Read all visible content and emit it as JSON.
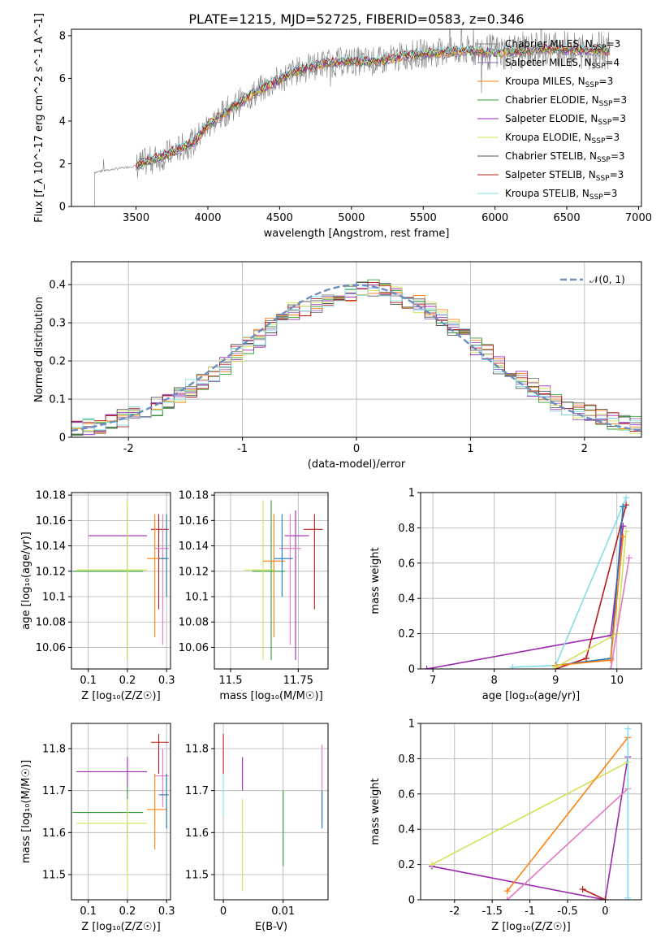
{
  "chart_data": [
    {
      "id": "spectrum",
      "type": "line",
      "title": "PLATE=1215, MJD=52725, FIBERID=0583, z=0.346",
      "xlabel": "wavelength [Angstrom, rest frame]",
      "ylabel": "Flux [f_λ 10^-17 erg cm^-2 s^-1 A^-1]",
      "xlim": [
        3050,
        7020
      ],
      "ylim": [
        0,
        8.3
      ],
      "xticks": [
        3500,
        4000,
        4500,
        5000,
        5500,
        6000,
        6500,
        7000
      ],
      "yticks": [
        0,
        2,
        4,
        6,
        8
      ],
      "grid": false,
      "legend_position": "top-right",
      "series": [
        {
          "name": "Chabrier MILES, N_SSP=3",
          "color": "#7f7f7f"
        },
        {
          "name": "Salpeter MILES, N_SSP=4",
          "color": "#9467bd"
        },
        {
          "name": "Kroupa MILES, N_SSP=3",
          "color": "#ff7f0e"
        },
        {
          "name": "Chabrier ELODIE, N_SSP=3",
          "color": "#2ca02c"
        },
        {
          "name": "Salpeter ELODIE, N_SSP=3",
          "color": "#9c27b0"
        },
        {
          "name": "Kroupa ELODIE, N_SSP=3",
          "color": "#d4e157"
        },
        {
          "name": "Chabrier STELIB, N_SSP=3",
          "color": "#555555"
        },
        {
          "name": "Salpeter STELIB, N_SSP=3",
          "color": "#b71c1c"
        },
        {
          "name": "Kroupa STELIB, N_SSP=3",
          "color": "#80deea"
        }
      ],
      "continuum": {
        "x": [
          3210,
          3300,
          3500,
          3700,
          3900,
          4000,
          4200,
          4400,
          4600,
          4800,
          5000,
          5200,
          5400,
          5600,
          5800,
          6000,
          6200,
          6400,
          6600,
          6800
        ],
        "y": [
          1.6,
          1.7,
          1.9,
          2.4,
          3.0,
          3.8,
          4.8,
          5.6,
          6.3,
          6.7,
          6.8,
          6.8,
          7.1,
          7.2,
          7.3,
          7.2,
          7.3,
          7.4,
          7.3,
          7.3
        ]
      }
    },
    {
      "id": "residuals",
      "type": "line",
      "xlabel": "(data-model)/error",
      "ylabel": "Normed distribution",
      "xlim": [
        -2.5,
        2.5
      ],
      "ylim": [
        0,
        0.46
      ],
      "xticks": [
        -2,
        -1,
        0,
        1,
        2
      ],
      "yticks": [
        0.0,
        0.1,
        0.2,
        0.3,
        0.4
      ],
      "grid": true,
      "legend": [
        {
          "name": "𝒩(0, 1)",
          "color": "#6c8ebf"
        }
      ],
      "hist_bins": [
        -2.5,
        -2.4,
        -2.3,
        -2.2,
        -2.1,
        -2.0,
        -1.9,
        -1.8,
        -1.7,
        -1.6,
        -1.5,
        -1.4,
        -1.3,
        -1.2,
        -1.1,
        -1.0,
        -0.9,
        -0.8,
        -0.7,
        -0.6,
        -0.5,
        -0.4,
        -0.3,
        -0.2,
        -0.1,
        0.0,
        0.1,
        0.2,
        0.3,
        0.4,
        0.5,
        0.6,
        0.7,
        0.8,
        0.9,
        1.0,
        1.1,
        1.2,
        1.3,
        1.4,
        1.5,
        1.6,
        1.7,
        1.8,
        1.9,
        2.0,
        2.1,
        2.2,
        2.3,
        2.4,
        2.5
      ],
      "hist_values": [
        0.02,
        0.025,
        0.03,
        0.04,
        0.05,
        0.055,
        0.065,
        0.08,
        0.09,
        0.11,
        0.13,
        0.15,
        0.17,
        0.19,
        0.22,
        0.24,
        0.26,
        0.29,
        0.31,
        0.33,
        0.34,
        0.35,
        0.36,
        0.37,
        0.38,
        0.385,
        0.39,
        0.38,
        0.37,
        0.36,
        0.35,
        0.33,
        0.31,
        0.29,
        0.27,
        0.24,
        0.22,
        0.19,
        0.17,
        0.15,
        0.13,
        0.11,
        0.09,
        0.08,
        0.07,
        0.06,
        0.05,
        0.04,
        0.035,
        0.03
      ]
    },
    {
      "id": "age_vs_Z",
      "type": "scatter",
      "xlabel": "Z [log₁₀(Z/Z☉)]",
      "ylabel": "age  [log₁₀(age/yr)]",
      "xlim": [
        0.057,
        0.31
      ],
      "ylim": [
        10.043,
        10.182
      ],
      "xticks": [
        0.1,
        0.2,
        0.3
      ],
      "yticks": [
        10.06,
        10.08,
        10.1,
        10.12,
        10.14,
        10.16,
        10.18
      ],
      "grid": true,
      "points": [
        {
          "x": 0.2,
          "y": 10.148,
          "xerr": [
            0.1,
            0.25
          ],
          "yerr": [
            10.05,
            10.168
          ],
          "color": "#9c27b0"
        },
        {
          "x": 0.2,
          "y": 10.12,
          "xerr": [
            0.06,
            0.24
          ],
          "yerr": [
            10.05,
            10.176
          ],
          "color": "#2ca02c"
        },
        {
          "x": 0.2,
          "y": 10.121,
          "xerr": [
            0.07,
            0.25
          ],
          "yerr": [
            10.05,
            10.176
          ],
          "color": "#d4e157"
        },
        {
          "x": 0.28,
          "y": 10.153,
          "xerr": [
            0.26,
            0.305
          ],
          "yerr": [
            10.09,
            10.165
          ],
          "color": "#b71c1c"
        },
        {
          "x": 0.27,
          "y": 10.13,
          "xerr": [
            0.25,
            0.3
          ],
          "yerr": [
            10.068,
            10.165
          ],
          "color": "#ff7f0e"
        },
        {
          "x": 0.29,
          "y": 10.138,
          "xerr": [
            0.27,
            0.305
          ],
          "yerr": [
            10.062,
            10.165
          ],
          "color": "#e377c2"
        },
        {
          "x": 0.3,
          "y": 10.13,
          "xerr": [
            0.28,
            0.305
          ],
          "yerr": [
            10.1,
            10.165
          ],
          "color": "#1f77b4"
        }
      ]
    },
    {
      "id": "age_vs_mass",
      "type": "scatter",
      "xlabel": "mass [log₁₀(M/M☉)]",
      "ylim": [
        10.043,
        10.182
      ],
      "xlim": [
        11.44,
        11.86
      ],
      "xticks": [
        11.5,
        11.75
      ],
      "yticks": [
        10.06,
        10.08,
        10.1,
        10.12,
        10.14,
        10.16,
        10.18
      ],
      "grid": true,
      "points": [
        {
          "x": 11.74,
          "y": 10.148,
          "xerr": [
            11.7,
            11.79
          ],
          "yerr": [
            10.05,
            10.168
          ],
          "color": "#9c27b0"
        },
        {
          "x": 11.65,
          "y": 10.12,
          "xerr": [
            11.58,
            11.7
          ],
          "yerr": [
            10.05,
            10.176
          ],
          "color": "#2ca02c"
        },
        {
          "x": 11.62,
          "y": 10.121,
          "xerr": [
            11.55,
            11.66
          ],
          "yerr": [
            10.05,
            10.176
          ],
          "color": "#d4e157"
        },
        {
          "x": 11.81,
          "y": 10.153,
          "xerr": [
            11.77,
            11.84
          ],
          "yerr": [
            10.09,
            10.165
          ],
          "color": "#b71c1c"
        },
        {
          "x": 11.66,
          "y": 10.128,
          "xerr": [
            11.62,
            11.7
          ],
          "yerr": [
            10.068,
            10.165
          ],
          "color": "#ff7f0e"
        },
        {
          "x": 11.72,
          "y": 10.138,
          "xerr": [
            11.68,
            11.76
          ],
          "yerr": [
            10.062,
            10.165
          ],
          "color": "#e377c2"
        },
        {
          "x": 11.69,
          "y": 10.13,
          "xerr": [
            11.66,
            11.73
          ],
          "yerr": [
            10.1,
            10.165
          ],
          "color": "#1f77b4"
        }
      ]
    },
    {
      "id": "weight_vs_age",
      "type": "line",
      "xlabel": "age  [log₁₀(age/yr)]",
      "ylabel": "mass weight",
      "xlim": [
        6.8,
        10.4
      ],
      "ylim": [
        0,
        1
      ],
      "xticks": [
        7,
        8,
        9,
        10
      ],
      "yticks": [
        0.0,
        0.2,
        0.4,
        0.6,
        0.8,
        1.0
      ],
      "grid": true,
      "series": [
        {
          "color": "#9c27b0",
          "x": [
            6.9,
            9.9,
            10.1
          ],
          "y": [
            0.0,
            0.19,
            0.81
          ]
        },
        {
          "color": "#b71c1c",
          "x": [
            9.0,
            9.5,
            10.15
          ],
          "y": [
            0.0,
            0.06,
            0.93
          ]
        },
        {
          "color": "#80deea",
          "x": [
            8.3,
            9.0,
            10.15
          ],
          "y": [
            0.01,
            0.02,
            0.97
          ]
        },
        {
          "color": "#1f77b4",
          "x": [
            9.0,
            9.9,
            10.1
          ],
          "y": [
            0.02,
            0.06,
            0.92
          ]
        },
        {
          "color": "#ff7f0e",
          "x": [
            9.0,
            9.9,
            10.1
          ],
          "y": [
            0.02,
            0.05,
            0.75
          ]
        },
        {
          "color": "#d4e157",
          "x": [
            9.0,
            10.0,
            10.15
          ],
          "y": [
            0.01,
            0.2,
            0.78
          ]
        },
        {
          "color": "#e377c2",
          "x": [
            9.9,
            10.2
          ],
          "y": [
            0.0,
            0.63
          ]
        }
      ]
    },
    {
      "id": "mass_vs_Z",
      "type": "scatter",
      "xlabel": "Z [log₁₀(Z/Z☉)]",
      "ylabel": "mass [log₁₀(M/M☉)]",
      "xlim": [
        0.057,
        0.31
      ],
      "ylim": [
        11.44,
        11.86
      ],
      "xticks": [
        0.1,
        0.2,
        0.3
      ],
      "yticks": [
        11.5,
        11.6,
        11.7,
        11.8
      ],
      "grid": true,
      "points": [
        {
          "x": 0.2,
          "y": 11.745,
          "xerr": [
            0.07,
            0.25
          ],
          "yerr": [
            11.58,
            11.78
          ],
          "color": "#9c27b0"
        },
        {
          "x": 0.2,
          "y": 11.648,
          "xerr": [
            0.06,
            0.24
          ],
          "yerr": [
            11.5,
            11.71
          ],
          "color": "#2ca02c"
        },
        {
          "x": 0.2,
          "y": 11.622,
          "xerr": [
            0.07,
            0.25
          ],
          "yerr": [
            11.46,
            11.68
          ],
          "color": "#d4e157"
        },
        {
          "x": 0.28,
          "y": 11.815,
          "xerr": [
            0.26,
            0.305
          ],
          "yerr": [
            11.74,
            11.835
          ],
          "color": "#b71c1c"
        },
        {
          "x": 0.27,
          "y": 11.655,
          "xerr": [
            0.25,
            0.3
          ],
          "yerr": [
            11.56,
            11.74
          ],
          "color": "#ff7f0e"
        },
        {
          "x": 0.29,
          "y": 11.735,
          "xerr": [
            0.27,
            0.305
          ],
          "yerr": [
            11.66,
            11.8
          ],
          "color": "#e377c2"
        },
        {
          "x": 0.3,
          "y": 11.69,
          "xerr": [
            0.28,
            0.305
          ],
          "yerr": [
            11.61,
            11.74
          ],
          "color": "#1f77b4"
        }
      ]
    },
    {
      "id": "mass_vs_ebv",
      "type": "scatter",
      "xlabel": "E(B-V)",
      "xlim": [
        -0.0015,
        0.0175
      ],
      "ylim": [
        11.44,
        11.86
      ],
      "xticks": [
        0.0,
        0.01
      ],
      "yticks": [
        11.5,
        11.6,
        11.7,
        11.8
      ],
      "grid": true,
      "points": [
        {
          "x": 0.0,
          "y": 11.75,
          "yerr": [
            11.74,
            11.835
          ],
          "color": "#b71c1c"
        },
        {
          "x": 0.0,
          "y": 11.7,
          "yerr": [
            11.64,
            11.74
          ],
          "color": "#80deea"
        },
        {
          "x": 0.0032,
          "y": 11.74,
          "yerr": [
            11.7,
            11.78
          ],
          "color": "#9c27b0"
        },
        {
          "x": 0.0032,
          "y": 11.6,
          "yerr": [
            11.46,
            11.68
          ],
          "color": "#d4e157"
        },
        {
          "x": 0.01,
          "y": 11.66,
          "yerr": [
            11.52,
            11.7
          ],
          "color": "#2ca02c"
        },
        {
          "x": 0.0165,
          "y": 11.72,
          "yerr": [
            11.62,
            11.81
          ],
          "color": "#e377c2"
        },
        {
          "x": 0.0165,
          "y": 11.66,
          "yerr": [
            11.61,
            11.7
          ],
          "color": "#1f77b4"
        }
      ]
    },
    {
      "id": "weight_vs_Z",
      "type": "line",
      "xlabel": "Z [log₁₀(Z/Z☉)]",
      "ylabel": "mass weight",
      "xlim": [
        -2.45,
        0.48
      ],
      "ylim": [
        0,
        1
      ],
      "xticks": [
        -2.0,
        -1.5,
        -1.0,
        -0.5,
        0.0
      ],
      "yticks": [
        0.0,
        0.2,
        0.4,
        0.6,
        0.8,
        1.0
      ],
      "grid": true,
      "series": [
        {
          "color": "#9c27b0",
          "x": [
            -2.3,
            0.0,
            0.3
          ],
          "y": [
            0.19,
            0.0,
            0.81
          ]
        },
        {
          "color": "#d4e157",
          "x": [
            -2.3,
            0.3
          ],
          "y": [
            0.2,
            0.78
          ]
        },
        {
          "color": "#ff7f0e",
          "x": [
            -1.3,
            0.3
          ],
          "y": [
            0.05,
            0.92
          ]
        },
        {
          "color": "#e377c2",
          "x": [
            -1.3,
            0.3
          ],
          "y": [
            0.0,
            0.63
          ]
        },
        {
          "color": "#b71c1c",
          "x": [
            -0.3,
            0.0
          ],
          "y": [
            0.06,
            0.0
          ]
        },
        {
          "color": "#80deea",
          "x": [
            0.3,
            0.3
          ],
          "y": [
            0.01,
            0.97
          ]
        }
      ]
    }
  ]
}
